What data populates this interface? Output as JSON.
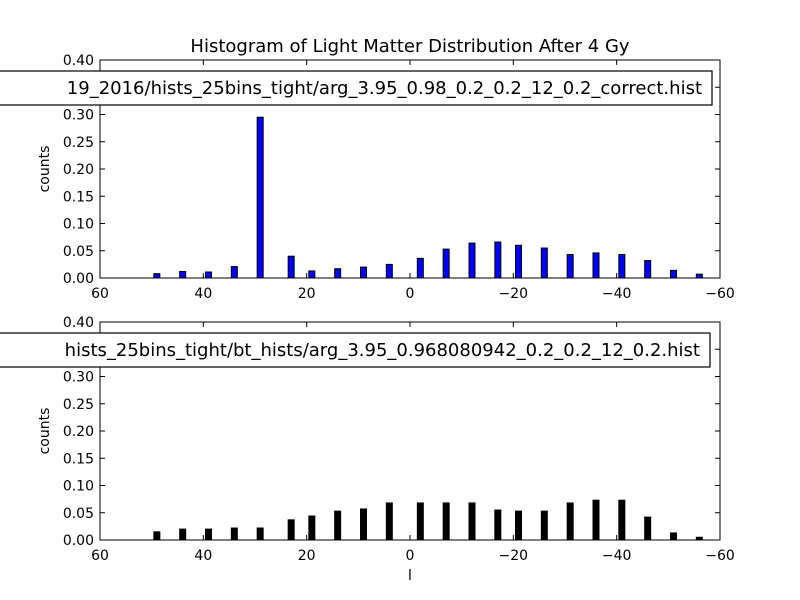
{
  "figure": {
    "title": "Histogram of Light Matter Distribution After 4 Gy"
  },
  "chart_data": [
    {
      "type": "bar",
      "title": "Histogram of Light Matter Distribution After 4 Gy",
      "legend_label": "19_2016/hists_25bins_tight/arg_3.95_0.98_0.2_0.2_12_0.2_correct.hist",
      "legend_placement": "top",
      "xlabel": "",
      "ylabel": "counts",
      "xlim": [
        60,
        -60
      ],
      "ylim": [
        0.0,
        0.4
      ],
      "x_ticks": [
        "60",
        "40",
        "20",
        "0",
        "−20",
        "−40",
        "−60"
      ],
      "y_ticks": [
        "0.00",
        "0.05",
        "0.10",
        "0.15",
        "0.20",
        "0.25",
        "0.30",
        "0.35",
        "0.40"
      ],
      "bar_color": "#0000ff",
      "x": [
        49,
        44,
        39,
        34,
        29,
        23,
        19,
        14,
        9,
        4,
        -2,
        -7,
        -12,
        -17,
        -21,
        -26,
        -31,
        -36,
        -41,
        -46,
        -51,
        -56
      ],
      "values": [
        0.008,
        0.012,
        0.011,
        0.021,
        0.295,
        0.04,
        0.013,
        0.017,
        0.02,
        0.025,
        0.036,
        0.053,
        0.064,
        0.066,
        0.06,
        0.055,
        0.043,
        0.046,
        0.043,
        0.032,
        0.014,
        0.007
      ]
    },
    {
      "type": "bar",
      "legend_label": "hists_25bins_tight/bt_hists/arg_3.95_0.968080942_0.2_0.2_12_0.2.hist",
      "legend_placement": "top",
      "xlabel": "l",
      "ylabel": "counts",
      "xlim": [
        60,
        -60
      ],
      "ylim": [
        0.0,
        0.4
      ],
      "x_ticks": [
        "60",
        "40",
        "20",
        "0",
        "−20",
        "−40",
        "−60"
      ],
      "y_ticks": [
        "0.00",
        "0.05",
        "0.10",
        "0.15",
        "0.20",
        "0.25",
        "0.30",
        "0.35",
        "0.40"
      ],
      "bar_color": "#000000",
      "x": [
        49,
        44,
        39,
        34,
        29,
        23,
        19,
        14,
        9,
        4,
        -2,
        -7,
        -12,
        -17,
        -21,
        -26,
        -31,
        -36,
        -41,
        -46,
        -51,
        -56
      ],
      "values": [
        0.015,
        0.02,
        0.02,
        0.022,
        0.022,
        0.037,
        0.044,
        0.053,
        0.057,
        0.068,
        0.068,
        0.068,
        0.068,
        0.055,
        0.053,
        0.053,
        0.068,
        0.073,
        0.073,
        0.042,
        0.013,
        0.005
      ]
    }
  ]
}
